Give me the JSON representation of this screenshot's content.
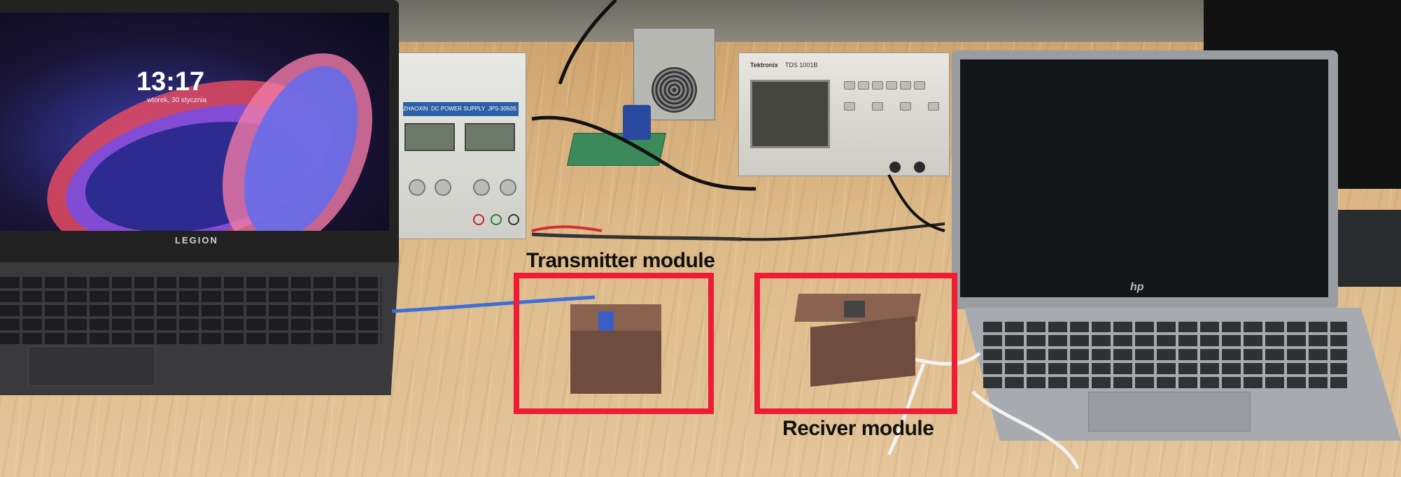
{
  "annotations": {
    "transmitter_label": "Transmitter module",
    "receiver_label": "Reciver module",
    "highlight_color": "#ee1c35"
  },
  "left_laptop": {
    "brand": "LEGION",
    "lock_time": "13:17",
    "lock_date": "wtorek, 30 stycznia"
  },
  "right_laptop": {
    "brand": "hp"
  },
  "power_supply": {
    "brand": "ZHAOXIN",
    "type": "DC POWER SUPPLY",
    "model": "JPS-3050S"
  },
  "oscilloscope": {
    "brand": "Tektronix",
    "model": "TDS 1001B"
  }
}
